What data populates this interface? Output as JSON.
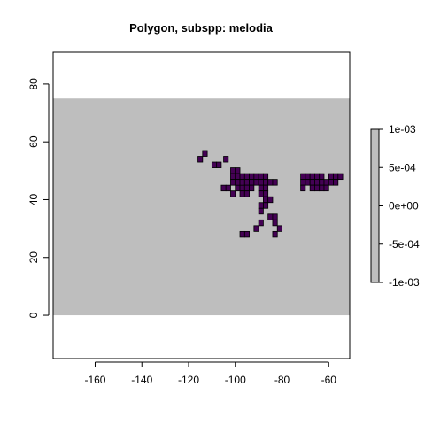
{
  "chart_data": {
    "type": "heatmap",
    "title": "Polygon, subspp: melodia",
    "xlabel": "",
    "ylabel": "",
    "xlim": [
      -178,
      -51
    ],
    "ylim": [
      -15,
      91
    ],
    "x_ticks": [
      -160,
      -140,
      -120,
      -100,
      -80,
      -60
    ],
    "x_tick_labels": [
      "-160",
      "-140",
      "-120",
      "-100",
      "-80",
      "-60"
    ],
    "y_ticks": [
      0,
      20,
      40,
      60,
      80
    ],
    "y_tick_labels": [
      "0",
      "20",
      "40",
      "60",
      "80"
    ],
    "raster_extent": {
      "x": [
        -178,
        -51
      ],
      "y": [
        0,
        75
      ]
    },
    "background_color": "#bebebe",
    "presence_color": "#440154",
    "cell_size": 2,
    "presence_cells": [
      [
        -115,
        54
      ],
      [
        -113,
        56
      ],
      [
        -109,
        52
      ],
      [
        -107,
        52
      ],
      [
        -104,
        54
      ],
      [
        -99,
        44
      ],
      [
        -97,
        44
      ],
      [
        -105,
        44
      ],
      [
        -103,
        44
      ],
      [
        -101,
        50
      ],
      [
        -101,
        48
      ],
      [
        -101,
        46
      ],
      [
        -99,
        50
      ],
      [
        -99,
        48
      ],
      [
        -99,
        46
      ],
      [
        -97,
        48
      ],
      [
        -97,
        46
      ],
      [
        -95,
        48
      ],
      [
        -95,
        46
      ],
      [
        -95,
        44
      ],
      [
        -93,
        48
      ],
      [
        -93,
        46
      ],
      [
        -93,
        44
      ],
      [
        -91,
        48
      ],
      [
        -91,
        46
      ],
      [
        -89,
        48
      ],
      [
        -89,
        46
      ],
      [
        -89,
        44
      ],
      [
        -89,
        42
      ],
      [
        -87,
        48
      ],
      [
        -87,
        46
      ],
      [
        -87,
        44
      ],
      [
        -87,
        42
      ],
      [
        -85,
        46
      ],
      [
        -83,
        46
      ],
      [
        -97,
        42
      ],
      [
        -95,
        42
      ],
      [
        -101,
        42
      ],
      [
        -87,
        40
      ],
      [
        -85,
        40
      ],
      [
        -87,
        38
      ],
      [
        -89,
        38
      ],
      [
        -89,
        36
      ],
      [
        -85,
        34
      ],
      [
        -83,
        34
      ],
      [
        -83,
        32
      ],
      [
        -89,
        32
      ],
      [
        -91,
        30
      ],
      [
        -95,
        28
      ],
      [
        -97,
        28
      ],
      [
        -81,
        30
      ],
      [
        -83,
        28
      ],
      [
        -71,
        48
      ],
      [
        -69,
        48
      ],
      [
        -67,
        48
      ],
      [
        -65,
        48
      ],
      [
        -63,
        48
      ],
      [
        -71,
        46
      ],
      [
        -69,
        46
      ],
      [
        -67,
        46
      ],
      [
        -65,
        46
      ],
      [
        -63,
        46
      ],
      [
        -61,
        46
      ],
      [
        -71,
        44
      ],
      [
        -67,
        44
      ],
      [
        -65,
        44
      ],
      [
        -63,
        44
      ],
      [
        -61,
        44
      ],
      [
        -59,
        48
      ],
      [
        -57,
        48
      ],
      [
        -55,
        48
      ],
      [
        -59,
        46
      ],
      [
        -57,
        46
      ]
    ],
    "legend": {
      "position": "right",
      "min": -0.001,
      "max": 0.001,
      "fill_color": "#bebebe",
      "ticks": [
        0.001,
        0.0005,
        0,
        -0.0005,
        -0.001
      ],
      "tick_labels": [
        "1e-03",
        "5e-04",
        "0e+00",
        "-5e-04",
        "-1e-03"
      ]
    }
  }
}
